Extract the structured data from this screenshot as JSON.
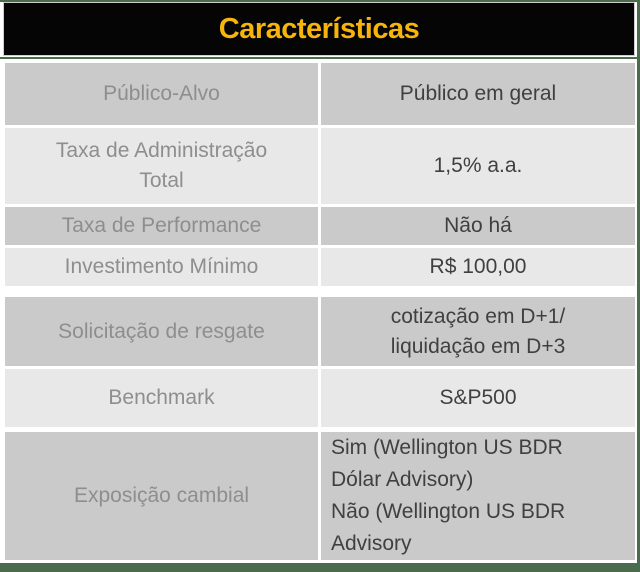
{
  "header": {
    "title": "Características"
  },
  "table": {
    "rows": [
      {
        "label": "Público-Alvo",
        "value": "Público em geral"
      },
      {
        "label": "Taxa de Administração\nTotal",
        "value": "1,5% a.a."
      },
      {
        "label": "Taxa de Performance",
        "value": "Não há"
      },
      {
        "label": "Investimento Mínimo",
        "value": "R$ 100,00"
      },
      {
        "label": "Solicitação de resgate",
        "value": "cotização em D+1/\nliquidação em D+3"
      },
      {
        "label": "Benchmark",
        "value": "S&P500"
      },
      {
        "label": "Exposição cambial",
        "value": "Sim (Wellington US BDR\nDólar Advisory)\nNão (Wellington US BDR\nAdvisory",
        "value_align": "left"
      }
    ]
  },
  "colors": {
    "accent_gold": "#F7B50C",
    "frame_green": "#4A6B4D",
    "header_bg": "#050505",
    "row_dark": "#CACACA",
    "row_light": "#E8E8E8",
    "label_text": "#8E8E8E",
    "value_text": "#404040"
  }
}
